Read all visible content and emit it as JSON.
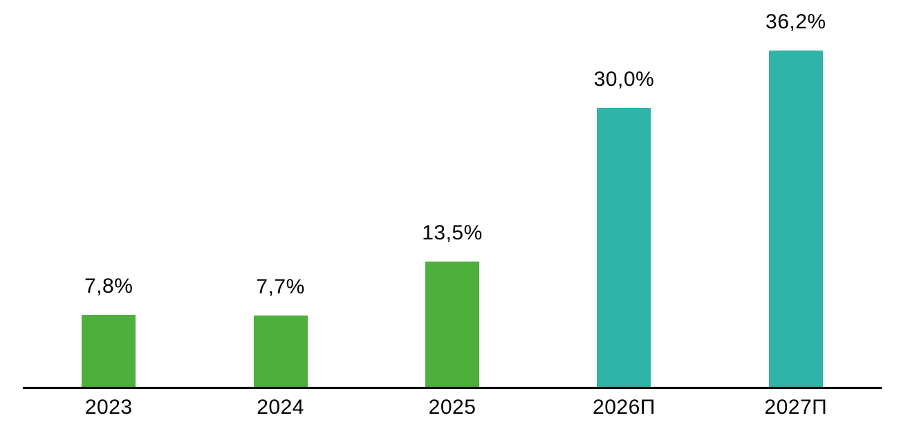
{
  "chart_data": {
    "type": "bar",
    "categories": [
      "2023",
      "2024",
      "2025",
      "2026П",
      "2027П"
    ],
    "values": [
      7.8,
      7.7,
      13.5,
      30.0,
      36.2
    ],
    "value_labels": [
      "7,8%",
      "7,7%",
      "13,5%",
      "30,0%",
      "36,2%"
    ],
    "series": [
      {
        "name": "share-percent",
        "values": [
          7.8,
          7.7,
          13.5,
          30.0,
          36.2
        ]
      }
    ],
    "bar_colors": [
      "#4DAF3C",
      "#4DAF3C",
      "#4DAF3C",
      "#31B4A8",
      "#31B4A8"
    ],
    "color_legend_implied": {
      "actual_color": "#4DAF3C",
      "forecast_color": "#31B4A8"
    },
    "title": "",
    "xlabel": "",
    "ylabel": "",
    "ylim": [
      0,
      40
    ],
    "grid": false,
    "legend": false,
    "axis_line_color": "#000000",
    "label_color": "#000000"
  }
}
